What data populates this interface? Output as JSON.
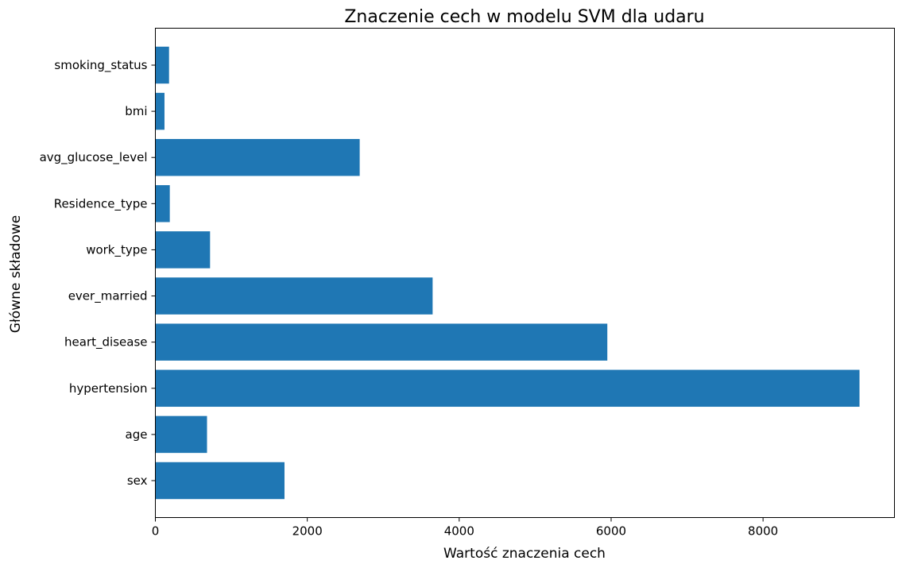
{
  "chart_data": {
    "type": "bar",
    "orientation": "horizontal",
    "title": "Znaczenie cech w modelu SVM dla udaru",
    "xlabel": "Wartość znaczenia cech",
    "ylabel": "Główne składowe",
    "categories": [
      "sex",
      "age",
      "hypertension",
      "heart_disease",
      "ever_married",
      "work_type",
      "Residence_type",
      "avg_glucose_level",
      "bmi",
      "smoking_status"
    ],
    "values": [
      1700,
      680,
      9270,
      5950,
      3650,
      720,
      190,
      2690,
      120,
      180
    ],
    "xlim": [
      0,
      9730
    ],
    "xticks": [
      0,
      2000,
      4000,
      6000,
      8000
    ],
    "xtick_labels": [
      "0",
      "2000",
      "4000",
      "6000",
      "8000"
    ],
    "bar_color": "#1f77b4",
    "grid": false,
    "legend": "none"
  }
}
